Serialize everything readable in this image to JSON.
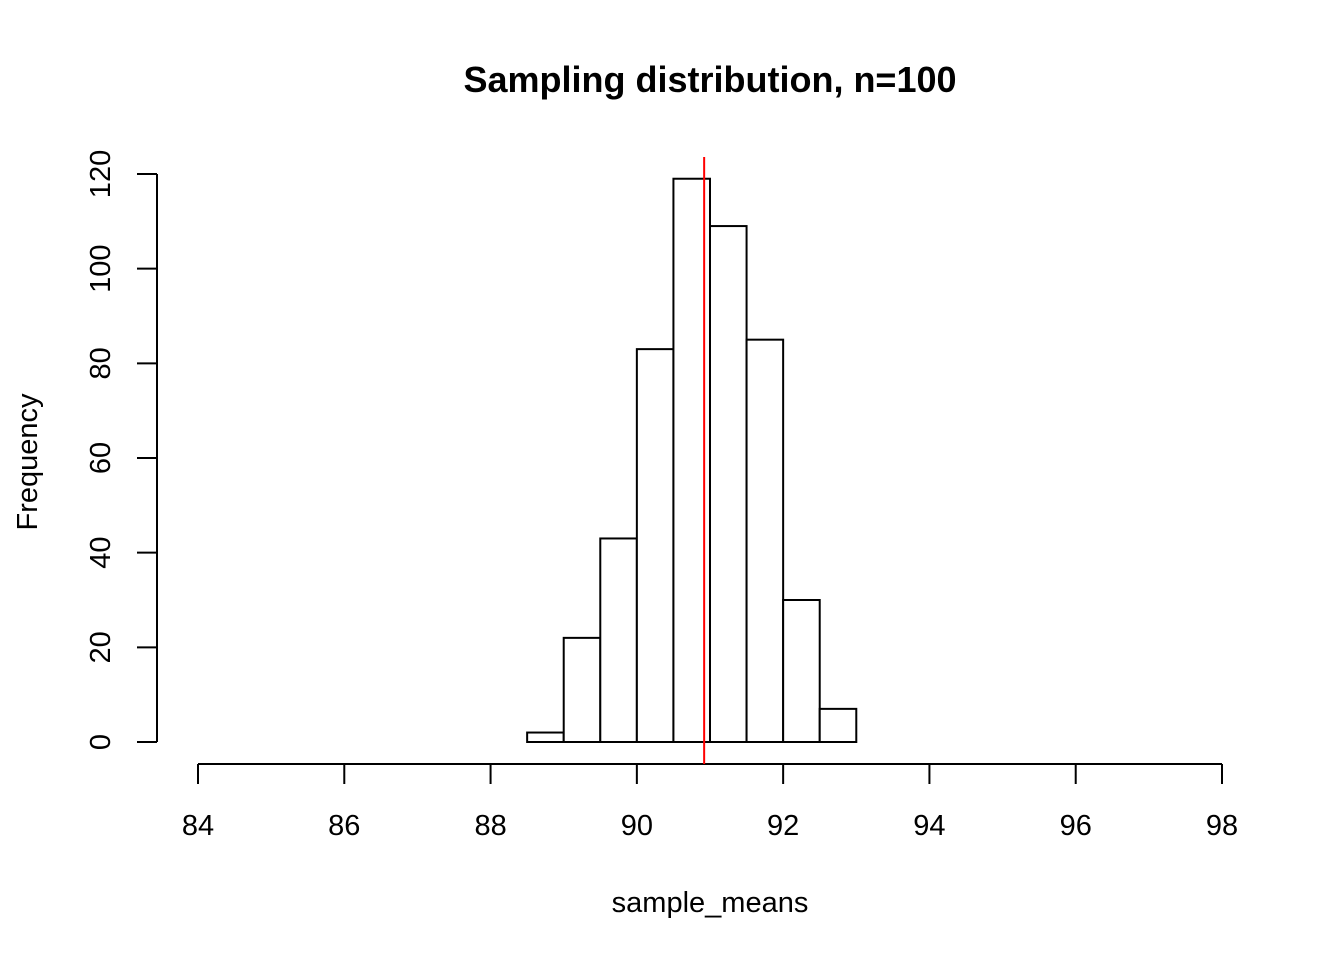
{
  "chart_data": {
    "type": "bar",
    "title": "Sampling distribution, n=100",
    "xlabel": "sample_means",
    "ylabel": "Frequency",
    "xlim": [
      84,
      98
    ],
    "ylim": [
      0,
      120
    ],
    "x_ticks": [
      84,
      86,
      88,
      90,
      92,
      94,
      96,
      98
    ],
    "y_ticks": [
      0,
      20,
      40,
      60,
      80,
      100,
      120
    ],
    "bins": [
      {
        "x0": 88.5,
        "x1": 89.0,
        "count": 2
      },
      {
        "x0": 89.0,
        "x1": 89.5,
        "count": 22
      },
      {
        "x0": 89.5,
        "x1": 90.0,
        "count": 43
      },
      {
        "x0": 90.0,
        "x1": 90.5,
        "count": 83
      },
      {
        "x0": 90.5,
        "x1": 91.0,
        "count": 119
      },
      {
        "x0": 91.0,
        "x1": 91.5,
        "count": 109
      },
      {
        "x0": 91.5,
        "x1": 92.0,
        "count": 85
      },
      {
        "x0": 92.0,
        "x1": 92.5,
        "count": 30
      },
      {
        "x0": 92.5,
        "x1": 93.0,
        "count": 7
      }
    ],
    "vline": {
      "x": 90.92,
      "color": "#ff0000"
    },
    "bar_fill": "#ffffff",
    "bar_stroke": "#000000",
    "grid": false,
    "legend": "none"
  }
}
